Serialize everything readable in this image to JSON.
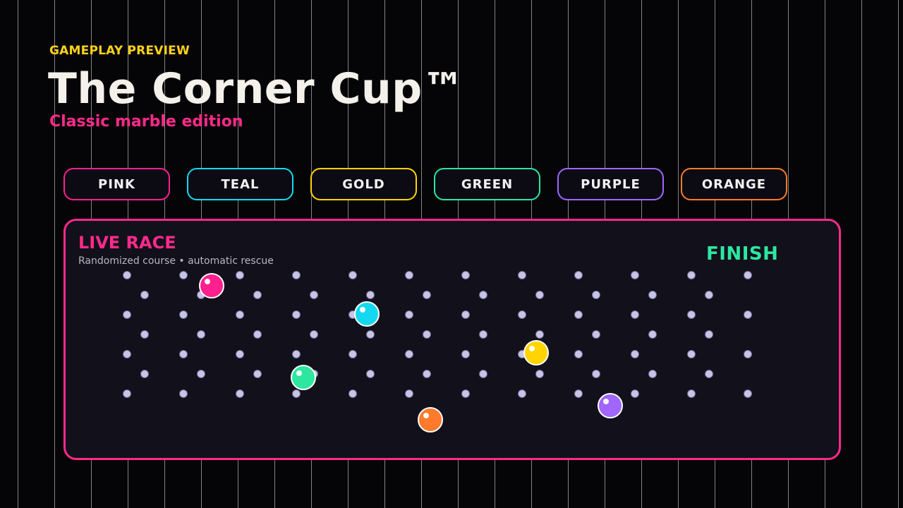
{
  "header": {
    "eyebrow": "GAMEPLAY PREVIEW",
    "title": "The Corner Cup™",
    "subtitle": "Classic marble edition"
  },
  "marbles": [
    {
      "id": "pink",
      "label": "PINK",
      "color": "#ff1f8e"
    },
    {
      "id": "teal",
      "label": "TEAL",
      "color": "#14d8f0"
    },
    {
      "id": "gold",
      "label": "GOLD",
      "color": "#ffd400"
    },
    {
      "id": "green",
      "label": "GREEN",
      "color": "#2ee6a0"
    },
    {
      "id": "purple",
      "label": "PURPLE",
      "color": "#a066ff"
    },
    {
      "id": "orange",
      "label": "ORANGE",
      "color": "#ff7a2a"
    }
  ],
  "race": {
    "heading": "LIVE RACE",
    "description": "Randomized course • automatic rescue",
    "finish_label": "FINISH",
    "accent_color": "#ff2a8a"
  },
  "colors": {
    "background": "#050508",
    "panel": "#11101b",
    "peg": "#c8c4e6"
  }
}
